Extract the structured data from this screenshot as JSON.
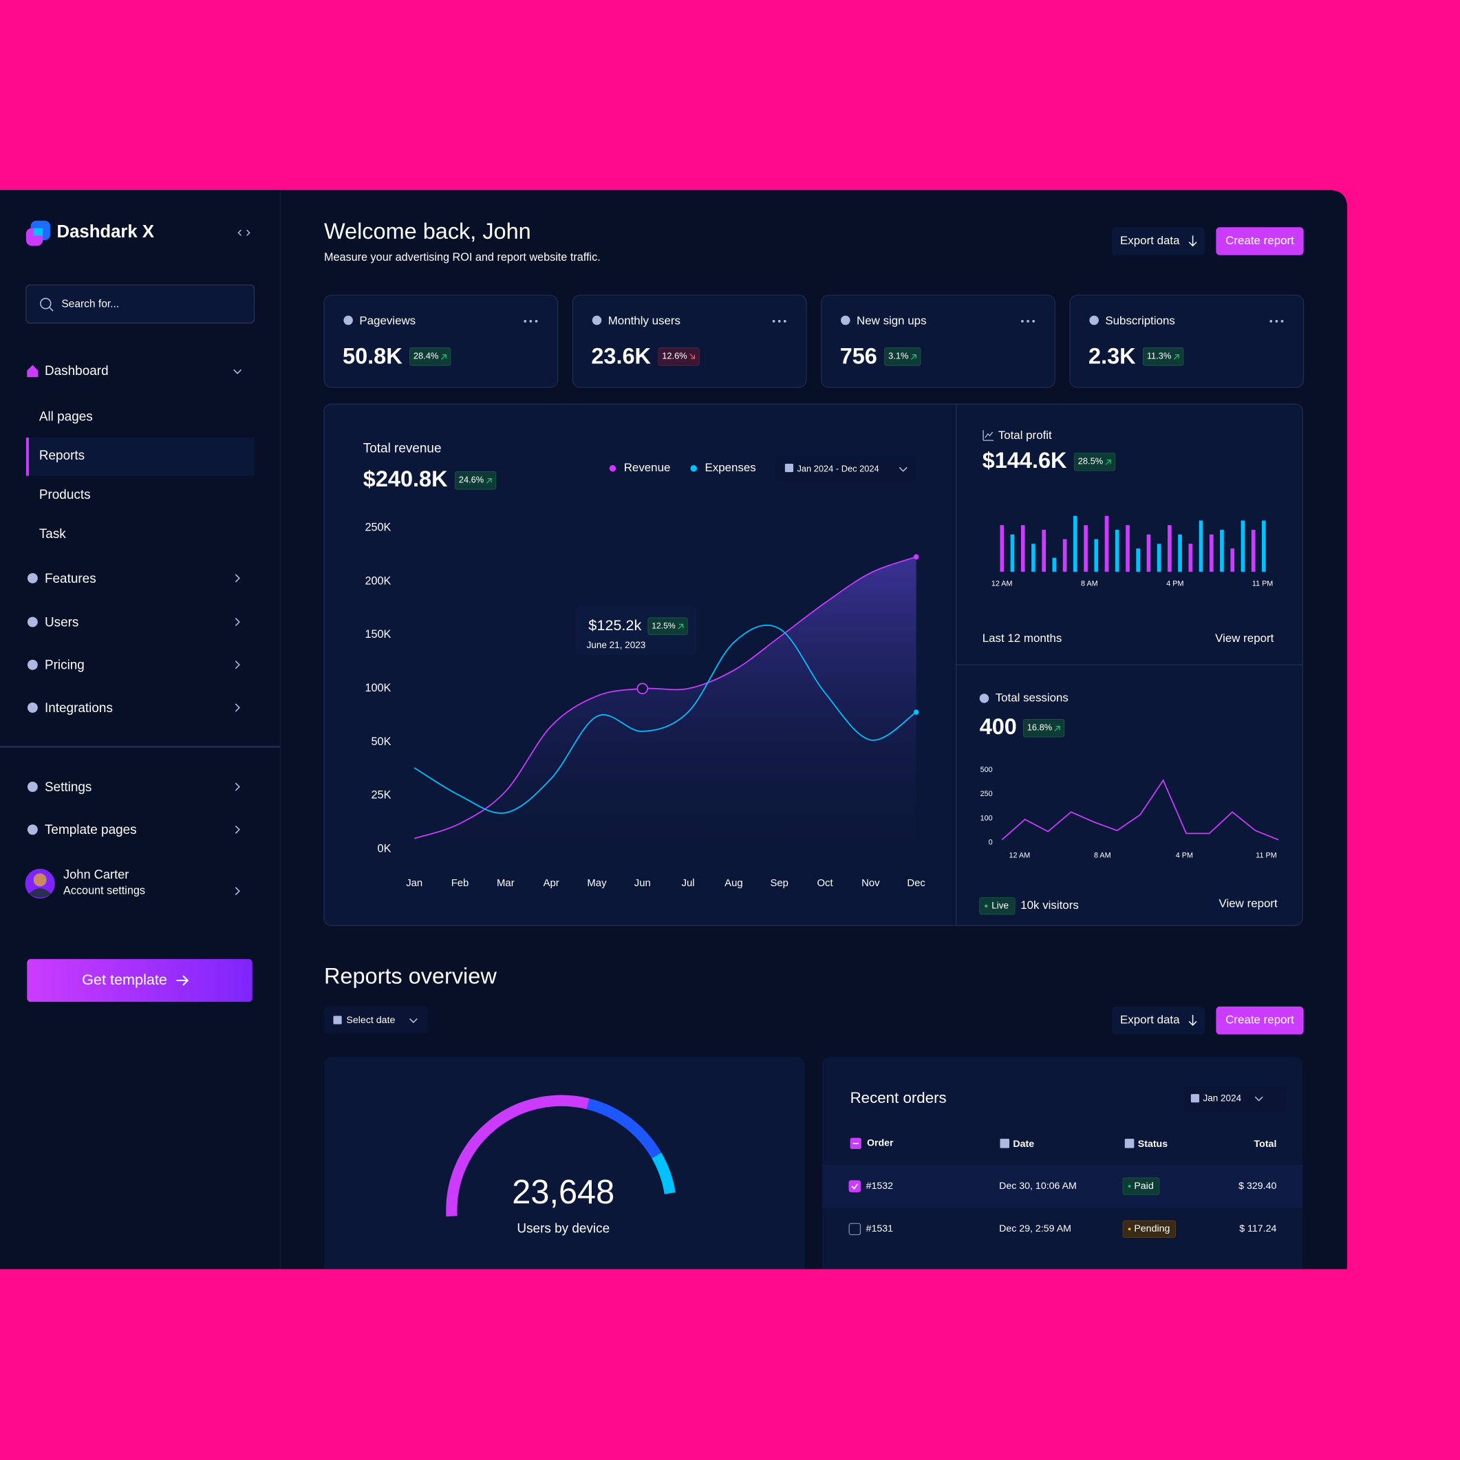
{
  "sidebar": {
    "brand": "Dashdark X",
    "search": "Search for...",
    "nav": [
      {
        "label": "Dashboard",
        "items": [
          "All pages",
          "Reports",
          "Products",
          "Task"
        ]
      },
      {
        "label": "Features"
      },
      {
        "label": "Users"
      },
      {
        "label": "Pricing"
      },
      {
        "label": "Integrations"
      }
    ],
    "settings": [
      "Settings",
      "Template pages"
    ],
    "user": {
      "name": "John Carter",
      "subtitle": "Account settings"
    },
    "cta": "Get template"
  },
  "header": {
    "title": "Welcome back, John",
    "subtitle": "Measure your advertising ROI and report website traffic.",
    "export": "Export data",
    "create": "Create report"
  },
  "stats": [
    {
      "label": "Pageviews",
      "value": "50.8K",
      "change": "28.4%",
      "trend": "up"
    },
    {
      "label": "Monthly users",
      "value": "23.6K",
      "change": "12.6%",
      "trend": "down"
    },
    {
      "label": "New sign ups",
      "value": "756",
      "change": "3.1%",
      "trend": "up"
    },
    {
      "label": "Subscriptions",
      "value": "2.3K",
      "change": "11.3%",
      "trend": "up"
    }
  ],
  "revenue_chart": {
    "type": "line",
    "title": "Total revenue",
    "total": "$240.8K",
    "change": "24.6%",
    "date_range": "Jan 2024 - Dec 2024",
    "categories": [
      "Jan",
      "Feb",
      "Mar",
      "Apr",
      "May",
      "Jun",
      "Jul",
      "Aug",
      "Sep",
      "Oct",
      "Nov",
      "Dec"
    ],
    "series": [
      {
        "name": "Revenue",
        "color": "#cb3cff",
        "values": [
          5000,
          12000,
          27000,
          65000,
          93000,
          100000,
          100000,
          117000,
          148000,
          180000,
          208000,
          223000
        ]
      },
      {
        "name": "Expenses",
        "color": "#00c2ff",
        "values": [
          38000,
          25000,
          17000,
          33000,
          74000,
          60000,
          78000,
          143000,
          156000,
          96000,
          52000,
          78000
        ]
      }
    ],
    "ylim": [
      0,
      250000
    ],
    "yticks": [
      {
        "value": 0,
        "label": "0K"
      },
      {
        "value": 25000,
        "label": "25K"
      },
      {
        "value": 50000,
        "label": "50K"
      },
      {
        "value": 100000,
        "label": "100K"
      },
      {
        "value": 150000,
        "label": "150K"
      },
      {
        "value": 200000,
        "label": "200K"
      },
      {
        "value": 250000,
        "label": "250K"
      }
    ],
    "tooltip": {
      "value": "$125.2k",
      "change": "12.5%",
      "date": "June 21, 2023"
    }
  },
  "profit_chart": {
    "type": "bar",
    "title": "Total profit",
    "total": "$144.6K",
    "change": "28.5%",
    "xtick_labels": [
      "12 AM",
      "8 AM",
      "4 PM",
      "11 PM"
    ],
    "series": [
      {
        "color": "#cb3cff",
        "values": [
          50,
          50,
          45,
          35,
          50,
          60,
          50,
          40,
          50,
          30,
          40,
          25,
          45
        ]
      },
      {
        "color": "#00c2ff",
        "values": [
          40,
          30,
          15,
          60,
          35,
          45,
          25,
          30,
          40,
          55,
          45,
          55,
          55
        ]
      }
    ],
    "footer": "Last 12 months",
    "link": "View report"
  },
  "sessions_chart": {
    "type": "line",
    "title": "Total sessions",
    "total": "400",
    "change": "16.8%",
    "color": "#cb3cff",
    "values": [
      12,
      96,
      46,
      140,
      85,
      50,
      123,
      394,
      38,
      38,
      140,
      50,
      12
    ],
    "ylim": [
      0,
      500
    ],
    "yticks": [
      0,
      100,
      250,
      500
    ],
    "xtick_labels": [
      "12 AM",
      "8 AM",
      "4 PM",
      "11 PM"
    ],
    "live": "Live",
    "visitors": "10k visitors",
    "link": "View report"
  },
  "reports": {
    "title": "Reports overview",
    "select_date": "Select date",
    "export": "Export data",
    "create": "Create report",
    "gauge": {
      "value": "23,648",
      "label": "Users by device"
    },
    "orders": {
      "title": "Recent orders",
      "period": "Jan 2024",
      "columns": [
        "Order",
        "Date",
        "Status",
        "Total"
      ],
      "rows": [
        [
          "#1532",
          "Dec 30, 10:06 AM",
          "Paid",
          "$ 329.40"
        ],
        [
          "#1531",
          "Dec 29, 2:59 AM",
          "Pending",
          "$ 117.24"
        ]
      ]
    }
  }
}
